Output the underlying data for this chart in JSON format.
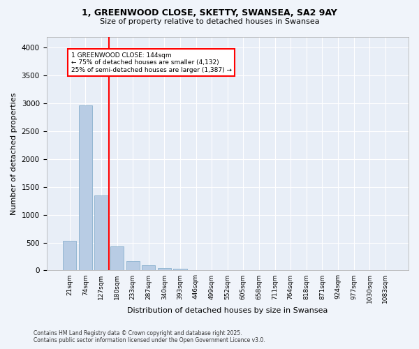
{
  "title_line1": "1, GREENWOOD CLOSE, SKETTY, SWANSEA, SA2 9AY",
  "title_line2": "Size of property relative to detached houses in Swansea",
  "xlabel": "Distribution of detached houses by size in Swansea",
  "ylabel": "Number of detached properties",
  "categories": [
    "21sqm",
    "74sqm",
    "127sqm",
    "180sqm",
    "233sqm",
    "287sqm",
    "340sqm",
    "393sqm",
    "446sqm",
    "499sqm",
    "552sqm",
    "605sqm",
    "658sqm",
    "711sqm",
    "764sqm",
    "818sqm",
    "871sqm",
    "924sqm",
    "977sqm",
    "1030sqm",
    "1083sqm"
  ],
  "values": [
    530,
    2960,
    1350,
    430,
    175,
    90,
    40,
    25,
    10,
    5,
    2,
    1,
    0,
    0,
    0,
    0,
    0,
    0,
    0,
    0,
    0
  ],
  "bar_color": "#b8cce4",
  "bar_edge_color": "#7ba7c7",
  "vline_x": 2.5,
  "vline_color": "red",
  "annotation_title": "1 GREENWOOD CLOSE: 144sqm",
  "annotation_line2": "← 75% of detached houses are smaller (4,132)",
  "annotation_line3": "25% of semi-detached houses are larger (1,387) →",
  "annotation_box_color": "red",
  "ylim": [
    0,
    4200
  ],
  "yticks": [
    0,
    500,
    1000,
    1500,
    2000,
    2500,
    3000,
    3500,
    4000
  ],
  "footer_line1": "Contains HM Land Registry data © Crown copyright and database right 2025.",
  "footer_line2": "Contains public sector information licensed under the Open Government Licence v3.0.",
  "bg_color": "#f0f4fa",
  "plot_bg_color": "#e8eef7",
  "grid_color": "#ffffff"
}
